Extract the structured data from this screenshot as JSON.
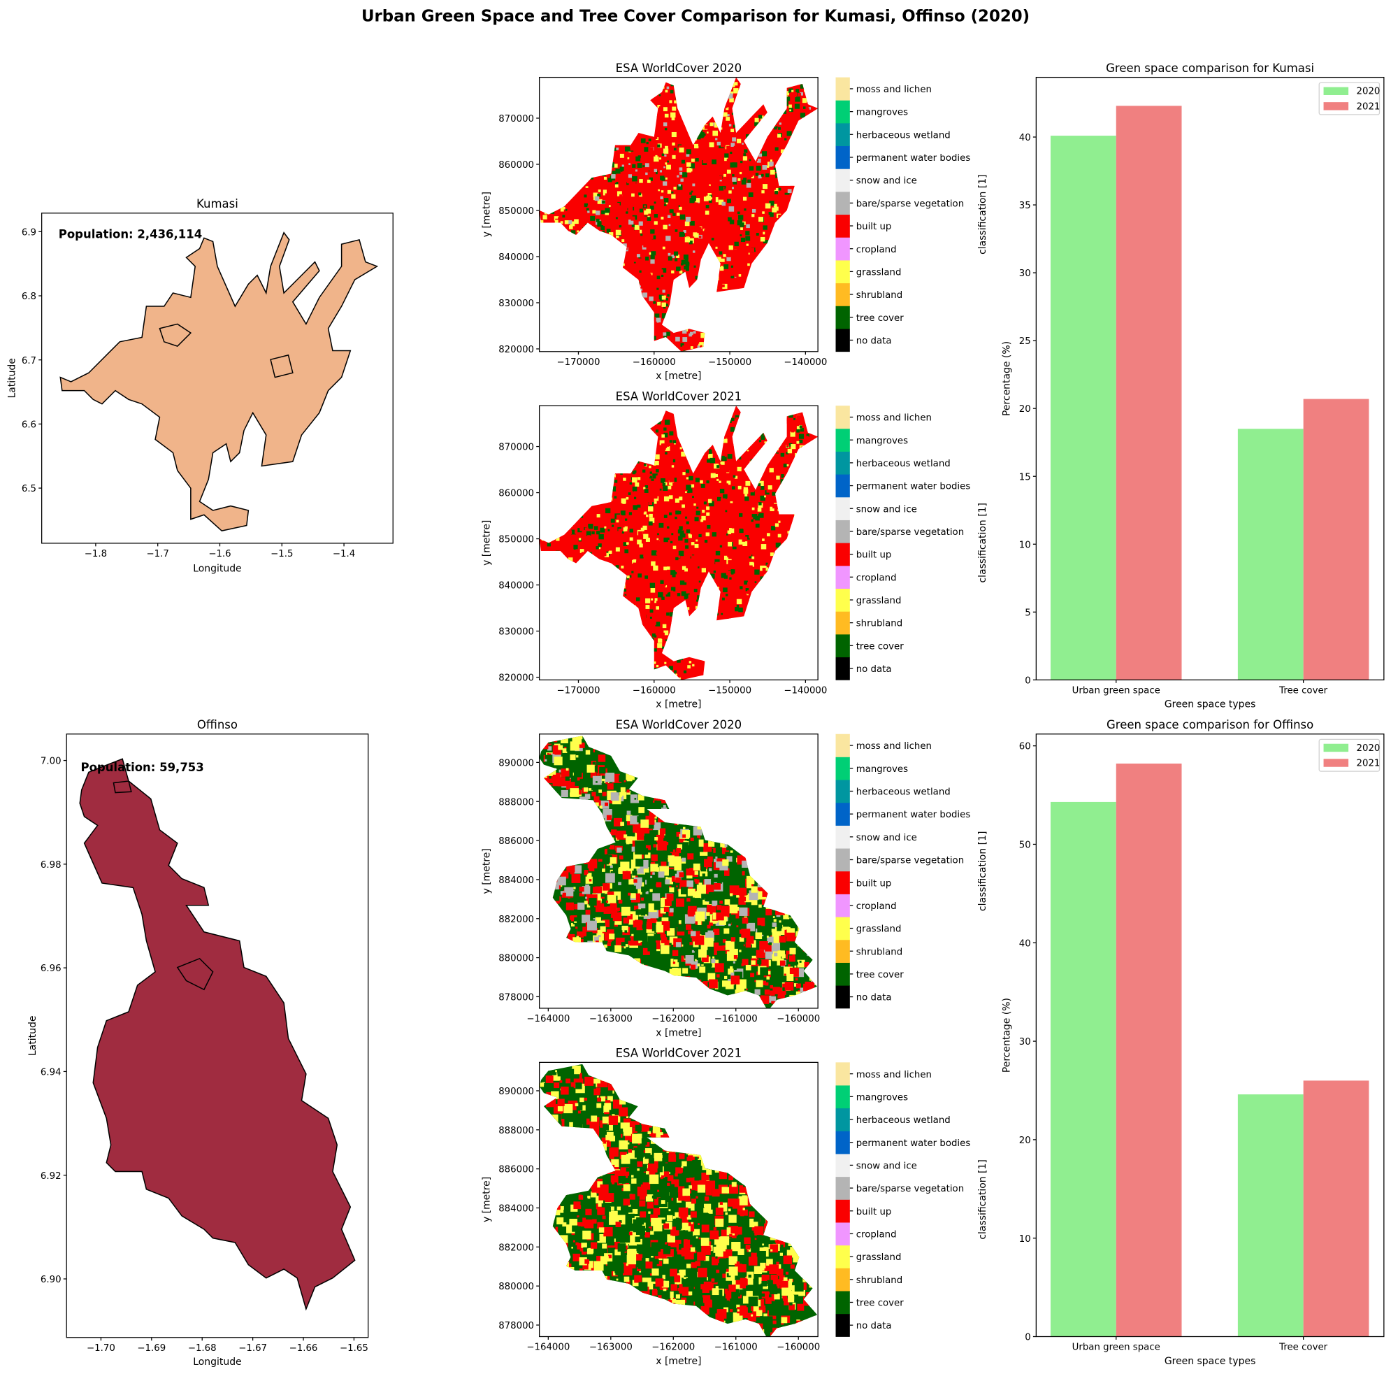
{
  "suptitle": "Urban Green Space and Tree Cover Comparison for Kumasi, Offinso (2020)",
  "landcover_classes": [
    {
      "label": "no data",
      "color": "#000000"
    },
    {
      "label": "tree cover",
      "color": "#006400"
    },
    {
      "label": "shrubland",
      "color": "#ffbb22"
    },
    {
      "label": "grassland",
      "color": "#ffff4c"
    },
    {
      "label": "cropland",
      "color": "#f096ff"
    },
    {
      "label": "built up",
      "color": "#fa0000"
    },
    {
      "label": "bare/sparse vegetation",
      "color": "#b4b4b4"
    },
    {
      "label": "snow and ice",
      "color": "#f0f0f0"
    },
    {
      "label": "permanent water bodies",
      "color": "#0064c8"
    },
    {
      "label": "herbaceous wetland",
      "color": "#0096a0"
    },
    {
      "label": "mangroves",
      "color": "#00cf75"
    },
    {
      "label": "moss and lichen",
      "color": "#fae6a0"
    }
  ],
  "colorbar_label": "classification [1]",
  "maps": {
    "kumasi": {
      "title": "Kumasi",
      "population_text": "Population: 2,436,114",
      "fill": "#f0b48a",
      "xlabel": "Longitude",
      "ylabel": "Latitude",
      "xlim": [
        -1.887,
        -1.321
      ],
      "ylim": [
        6.414,
        6.929
      ],
      "xticks": [
        "−1.8",
        "−1.7",
        "−1.6",
        "−1.5",
        "−1.4"
      ],
      "yticks": [
        "6.5",
        "6.6",
        "6.7",
        "6.8",
        "6.9"
      ]
    },
    "offinso": {
      "title": "Offinso",
      "population_text": "Population: 59,753",
      "fill": "#a02c40",
      "xlabel": "Longitude",
      "ylabel": "Latitude",
      "xlim": [
        -1.7068,
        -1.6472
      ],
      "ylim": [
        6.8887,
        7.0051
      ],
      "xticks": [
        "−1.70",
        "−1.69",
        "−1.68",
        "−1.67",
        "−1.66",
        "−1.65"
      ],
      "yticks": [
        "6.90",
        "6.92",
        "6.94",
        "6.96",
        "6.98",
        "7.00"
      ]
    }
  },
  "worldcover": {
    "kumasi_2020": {
      "title": "ESA WorldCover 2020",
      "xlabel": "x [metre]",
      "ylabel": "y [metre]",
      "xlim": [
        -175156,
        -138359
      ],
      "ylim": [
        819423,
        878846
      ],
      "xticks": [
        "−170000",
        "−160000",
        "−150000",
        "−140000"
      ],
      "yticks": [
        "820000",
        "830000",
        "840000",
        "850000",
        "860000",
        "870000"
      ]
    },
    "kumasi_2021": {
      "title": "ESA WorldCover 2021",
      "xlabel": "x [metre]",
      "ylabel": "y [metre]",
      "xlim": [
        -175156,
        -138359
      ],
      "ylim": [
        819423,
        878846
      ],
      "xticks": [
        "−170000",
        "−160000",
        "−150000",
        "−140000"
      ],
      "yticks": [
        "820000",
        "830000",
        "840000",
        "850000",
        "860000",
        "870000"
      ]
    },
    "offinso_2020": {
      "title": "ESA WorldCover 2020",
      "xlabel": "x [metre]",
      "ylabel": "y [metre]",
      "xlim": [
        -164142,
        -159688
      ],
      "ylim": [
        877409,
        891455
      ],
      "xticks": [
        "−164000",
        "−163000",
        "−162000",
        "−161000",
        "−160000"
      ],
      "yticks": [
        "878000",
        "880000",
        "882000",
        "884000",
        "886000",
        "888000",
        "890000"
      ]
    },
    "offinso_2021": {
      "title": "ESA WorldCover 2021",
      "xlabel": "x [metre]",
      "ylabel": "y [metre]",
      "xlim": [
        -164142,
        -159688
      ],
      "ylim": [
        877409,
        891455
      ],
      "xticks": [
        "−164000",
        "−163000",
        "−162000",
        "−161000",
        "−160000"
      ],
      "yticks": [
        "878000",
        "880000",
        "882000",
        "884000",
        "886000",
        "888000",
        "890000"
      ]
    }
  },
  "chart_data": [
    {
      "type": "bar",
      "title": "Green space comparison for Kumasi",
      "xlabel": "Green space types",
      "ylabel": "Percentage (%)",
      "categories": [
        "Urban green space",
        "Tree cover"
      ],
      "series": [
        {
          "name": "2020",
          "values": [
            40.1,
            18.5
          ],
          "color": "#90ee90"
        },
        {
          "name": "2021",
          "values": [
            42.3,
            20.7
          ],
          "color": "#f08080"
        }
      ],
      "ylim": [
        0,
        44.4
      ],
      "yticks": [
        0,
        5,
        10,
        15,
        20,
        25,
        30,
        35,
        40
      ],
      "legend": "top-right",
      "grid": false
    },
    {
      "type": "bar",
      "title": "Green space comparison for Offinso",
      "xlabel": "Green space types",
      "ylabel": "Percentage (%)",
      "categories": [
        "Urban green space",
        "Tree cover"
      ],
      "series": [
        {
          "name": "2020",
          "values": [
            54.3,
            24.6
          ],
          "color": "#90ee90"
        },
        {
          "name": "2021",
          "values": [
            58.2,
            26.0
          ],
          "color": "#f08080"
        }
      ],
      "ylim": [
        0,
        61.2
      ],
      "yticks": [
        0,
        10,
        20,
        30,
        40,
        50,
        60
      ],
      "legend": "top-right",
      "grid": false
    }
  ]
}
